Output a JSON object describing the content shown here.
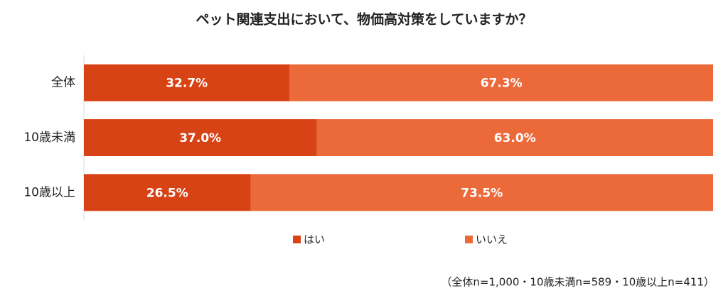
{
  "chart_data": {
    "type": "stacked-bar-horizontal",
    "title": "ペット関連支出において、物価高対策をしていますか？",
    "categories": [
      "全体",
      "10歳未満",
      "10歳以上"
    ],
    "series": [
      {
        "name": "はい",
        "color": "#d84315",
        "values": [
          32.7,
          37.0,
          26.5
        ],
        "value_labels": [
          "32.7%",
          "37.0%",
          "26.5%"
        ]
      },
      {
        "name": "いいえ",
        "color": "#ec6a3a",
        "values": [
          67.3,
          63.0,
          73.5
        ],
        "value_labels": [
          "67.3%",
          "63.0%",
          "73.5%"
        ]
      }
    ],
    "xlim": [
      0,
      100
    ],
    "note": "（全体n=1,000・10歳未満n=589・10歳以上n=411）"
  }
}
